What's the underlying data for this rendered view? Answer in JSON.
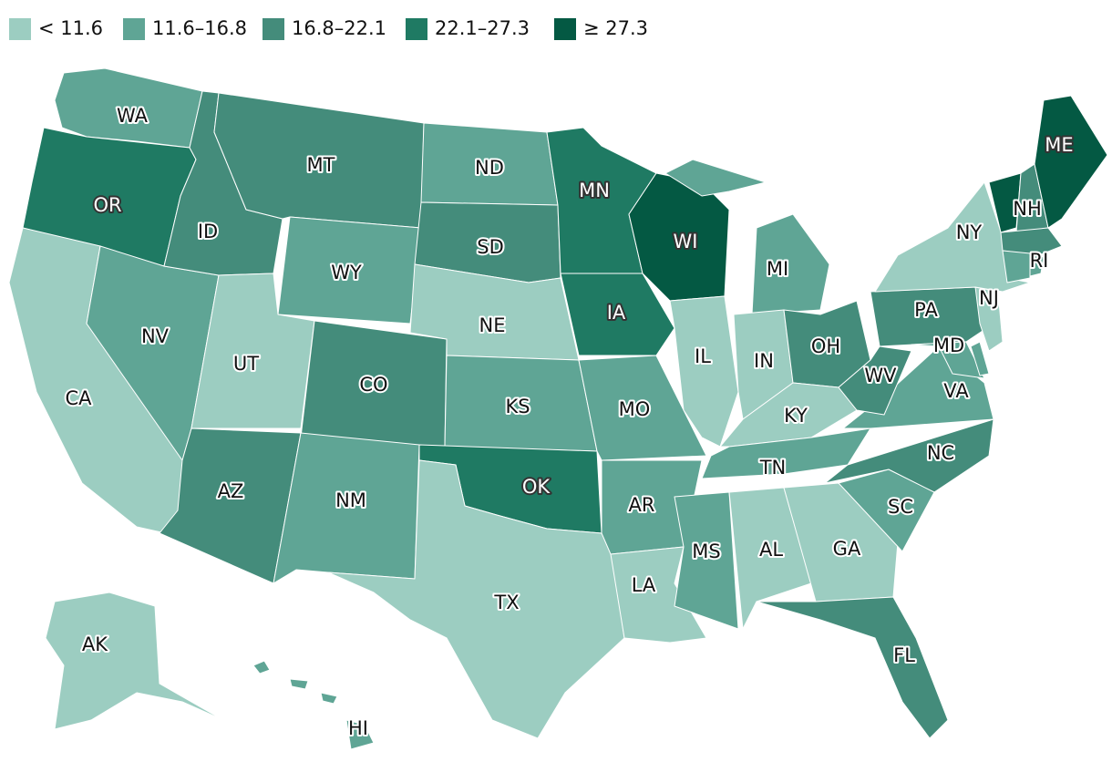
{
  "legend": [
    {
      "label": "< 11.6",
      "color": "#9ccdc1"
    },
    {
      "label": "11.6–16.8",
      "color": "#5fa595"
    },
    {
      "label": "16.8–22.1",
      "color": "#448c7b"
    },
    {
      "label": "22.1–27.3",
      "color": "#1f7a63"
    },
    {
      "label": "≥ 27.3",
      "color": "#045943"
    }
  ],
  "states": [
    {
      "label": "WA",
      "color": "#5fa595"
    },
    {
      "label": "OR",
      "color": "#1f7a63"
    },
    {
      "label": "CA",
      "color": "#9ccdc1"
    },
    {
      "label": "NV",
      "color": "#5fa595"
    },
    {
      "label": "ID",
      "color": "#448c7b"
    },
    {
      "label": "MT",
      "color": "#448c7b"
    },
    {
      "label": "WY",
      "color": "#5fa595"
    },
    {
      "label": "UT",
      "color": "#9ccdc1"
    },
    {
      "label": "CO",
      "color": "#448c7b"
    },
    {
      "label": "AZ",
      "color": "#448c7b"
    },
    {
      "label": "NM",
      "color": "#5fa595"
    },
    {
      "label": "ND",
      "color": "#5fa595"
    },
    {
      "label": "SD",
      "color": "#448c7b"
    },
    {
      "label": "NE",
      "color": "#9ccdc1"
    },
    {
      "label": "KS",
      "color": "#5fa595"
    },
    {
      "label": "OK",
      "color": "#1f7a63"
    },
    {
      "label": "TX",
      "color": "#9ccdc1"
    },
    {
      "label": "MN",
      "color": "#1f7a63"
    },
    {
      "label": "IA",
      "color": "#1f7a63"
    },
    {
      "label": "MO",
      "color": "#5fa595"
    },
    {
      "label": "AR",
      "color": "#5fa595"
    },
    {
      "label": "LA",
      "color": "#9ccdc1"
    },
    {
      "label": "WI",
      "color": "#045943"
    },
    {
      "label": "IL",
      "color": "#9ccdc1"
    },
    {
      "label": "MI",
      "color": "#5fa595"
    },
    {
      "label": "IN",
      "color": "#9ccdc1"
    },
    {
      "label": "OH",
      "color": "#448c7b"
    },
    {
      "label": "KY",
      "color": "#9ccdc1"
    },
    {
      "label": "TN",
      "color": "#5fa595"
    },
    {
      "label": "MS",
      "color": "#5fa595"
    },
    {
      "label": "AL",
      "color": "#9ccdc1"
    },
    {
      "label": "GA",
      "color": "#9ccdc1"
    },
    {
      "label": "FL",
      "color": "#448c7b"
    },
    {
      "label": "SC",
      "color": "#5fa595"
    },
    {
      "label": "NC",
      "color": "#448c7b"
    },
    {
      "label": "VA",
      "color": "#5fa595"
    },
    {
      "label": "WV",
      "color": "#448c7b"
    },
    {
      "label": "PA",
      "color": "#448c7b"
    },
    {
      "label": "MD",
      "color": "#5fa595"
    },
    {
      "color": "#5fa595"
    },
    {
      "label": "NJ",
      "color": "#9ccdc1"
    },
    {
      "label": "NY",
      "color": "#9ccdc1"
    },
    {
      "color": "#045943"
    },
    {
      "label": "NH",
      "color": "#448c7b"
    },
    {
      "label": "ME",
      "color": "#045943"
    },
    {
      "color": "#448c7b"
    },
    {
      "color": "#5fa595"
    },
    {
      "label": "RI",
      "color": "#5fa595"
    },
    {
      "label": "AK",
      "color": "#9ccdc1"
    },
    {
      "label": "HI",
      "color": "#5fa595"
    }
  ]
}
